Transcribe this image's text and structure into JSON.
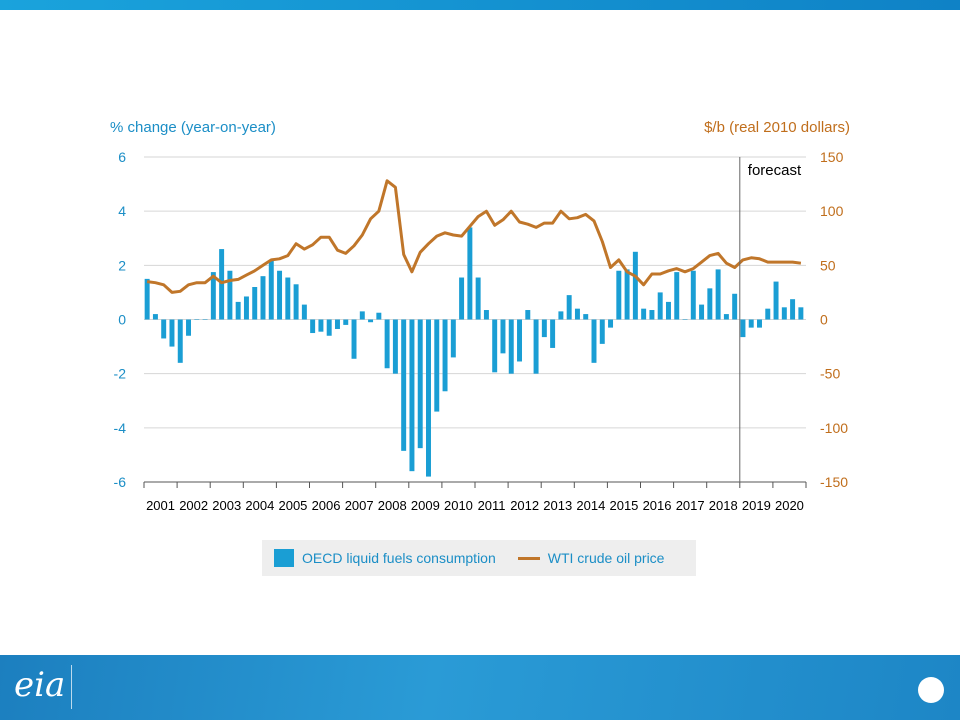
{
  "colors": {
    "bar": "#1a9ed4",
    "line": "#c0762a",
    "axis_left": "#1b8ec6",
    "axis_right": "#c06e1c"
  },
  "chart_data": {
    "type": "bar",
    "left_axis_title": "% change (year-on-year)",
    "right_axis_title": "$/b (real 2010 dollars)",
    "forecast_label": "forecast",
    "forecast_start": 2019,
    "x_range": [
      2001,
      2021
    ],
    "x_tick_labels": [
      "2001",
      "2002",
      "2003",
      "2004",
      "2005",
      "2006",
      "2007",
      "2008",
      "2009",
      "2010",
      "2011",
      "2012",
      "2013",
      "2014",
      "2015",
      "2016",
      "2017",
      "2018",
      "2019",
      "2020"
    ],
    "y_left_range": [
      -6,
      6
    ],
    "y_left_ticks": [
      "6",
      "4",
      "2",
      "0",
      "-2",
      "-4",
      "-6"
    ],
    "y_right_range": [
      -150,
      150
    ],
    "y_right_ticks": [
      "150",
      "100",
      "50",
      "0",
      "-50",
      "-100",
      "-150"
    ],
    "grid": "horizontal",
    "series": [
      {
        "name": "OECD liquid fuels consumption",
        "type": "bar",
        "axis": "left",
        "x": [
          2001.0,
          2001.25,
          2001.5,
          2001.75,
          2002.0,
          2002.25,
          2002.5,
          2002.75,
          2003.0,
          2003.25,
          2003.5,
          2003.75,
          2004.0,
          2004.25,
          2004.5,
          2004.75,
          2005.0,
          2005.25,
          2005.5,
          2005.75,
          2006.0,
          2006.25,
          2006.5,
          2006.75,
          2007.0,
          2007.25,
          2007.5,
          2007.75,
          2008.0,
          2008.25,
          2008.5,
          2008.75,
          2009.0,
          2009.25,
          2009.5,
          2009.75,
          2010.0,
          2010.25,
          2010.5,
          2010.75,
          2011.0,
          2011.25,
          2011.5,
          2011.75,
          2012.0,
          2012.25,
          2012.5,
          2012.75,
          2013.0,
          2013.25,
          2013.5,
          2013.75,
          2014.0,
          2014.25,
          2014.5,
          2014.75,
          2015.0,
          2015.25,
          2015.5,
          2015.75,
          2016.0,
          2016.25,
          2016.5,
          2016.75,
          2017.0,
          2017.25,
          2017.5,
          2017.75,
          2018.0,
          2018.25,
          2018.5,
          2018.75,
          2019.0,
          2019.25,
          2019.5,
          2019.75,
          2020.0,
          2020.25,
          2020.5,
          2020.75
        ],
        "values": [
          1.5,
          0.2,
          -0.7,
          -1.0,
          -1.6,
          -0.6,
          0.0,
          0.0,
          1.75,
          2.6,
          1.8,
          0.65,
          0.85,
          1.2,
          1.6,
          2.2,
          1.8,
          1.55,
          1.3,
          0.55,
          -0.5,
          -0.45,
          -0.6,
          -0.35,
          -0.2,
          -1.45,
          0.3,
          -0.1,
          0.25,
          -1.8,
          -2.0,
          -4.85,
          -5.6,
          -4.75,
          -5.8,
          -3.4,
          -2.65,
          -1.4,
          1.55,
          3.4,
          1.55,
          0.35,
          -1.95,
          -1.25,
          -2.0,
          -1.55,
          0.35,
          -2.0,
          -0.65,
          -1.05,
          0.3,
          0.9,
          0.4,
          0.2,
          -1.6,
          -0.9,
          -0.3,
          1.8,
          1.85,
          2.5,
          0.4,
          0.35,
          1.0,
          0.65,
          1.75,
          0.0,
          1.8,
          0.55,
          1.15,
          1.85,
          0.2,
          0.95,
          -0.65,
          -0.3,
          -0.3,
          0.4,
          1.4,
          0.45,
          0.75,
          0.45
        ]
      },
      {
        "name": "WTI crude oil price",
        "type": "line",
        "axis": "right",
        "x": [
          2001.0,
          2001.25,
          2001.5,
          2001.75,
          2002.0,
          2002.25,
          2002.5,
          2002.75,
          2003.0,
          2003.25,
          2003.5,
          2003.75,
          2004.0,
          2004.25,
          2004.5,
          2004.75,
          2005.0,
          2005.25,
          2005.5,
          2005.75,
          2006.0,
          2006.25,
          2006.5,
          2006.75,
          2007.0,
          2007.25,
          2007.5,
          2007.75,
          2008.0,
          2008.25,
          2008.5,
          2008.75,
          2009.0,
          2009.25,
          2009.5,
          2009.75,
          2010.0,
          2010.25,
          2010.5,
          2010.75,
          2011.0,
          2011.25,
          2011.5,
          2011.75,
          2012.0,
          2012.25,
          2012.5,
          2012.75,
          2013.0,
          2013.25,
          2013.5,
          2013.75,
          2014.0,
          2014.25,
          2014.5,
          2014.75,
          2015.0,
          2015.25,
          2015.5,
          2015.75,
          2016.0,
          2016.25,
          2016.5,
          2016.75,
          2017.0,
          2017.25,
          2017.5,
          2017.75,
          2018.0,
          2018.25,
          2018.5,
          2018.75,
          2019.0,
          2019.25,
          2019.5,
          2019.75,
          2020.0,
          2020.25,
          2020.5,
          2020.75
        ],
        "values": [
          35,
          34,
          32,
          25,
          26,
          32,
          34,
          34,
          40,
          34,
          36,
          37,
          41,
          45,
          50,
          55,
          56,
          59,
          70,
          65,
          69,
          76,
          76,
          64,
          61,
          68,
          78,
          93,
          100,
          128,
          122,
          60,
          44,
          62,
          70,
          77,
          80,
          78,
          77,
          86,
          95,
          100,
          87,
          92,
          100,
          90,
          88,
          85,
          89,
          89,
          100,
          93,
          94,
          97,
          91,
          72,
          48,
          55,
          44,
          40,
          32,
          42,
          42,
          45,
          47,
          44,
          47,
          53,
          59,
          61,
          52,
          48,
          55,
          57,
          56,
          53,
          53,
          53,
          53,
          52
        ]
      }
    ]
  }
}
